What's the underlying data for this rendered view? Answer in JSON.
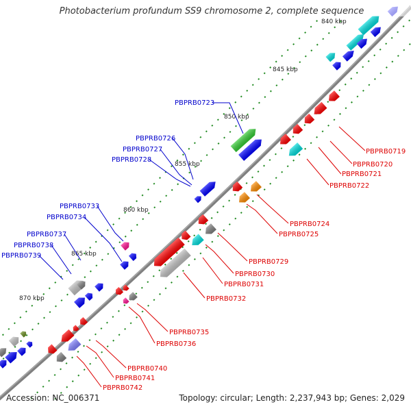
{
  "title": "Photobacterium profundum SS9 chromosome 2, complete sequence",
  "accession_label": "Accession: NC_006371",
  "summary_label": "Topology: circular; Length: 2,237,943 bp; Genes: 2,029",
  "colors": {
    "backbone": "#808080",
    "tick": "#228b22",
    "label_forward": "#0000cc",
    "label_reverse": "#dd0000",
    "feature_red": "#ff0000",
    "feature_blue": "#0000ff",
    "feature_cyan": "#00dddd",
    "feature_grey": "#808080",
    "feature_lightgrey": "#c0c0c0",
    "feature_green": "#33cc33",
    "feature_orange": "#ff8c00",
    "feature_pink": "#ff1493",
    "feature_violet": "#8080ff",
    "feature_olive": "#6b8e23"
  },
  "position_ticks": [
    "840 kbp",
    "845 kbp",
    "850 kbp",
    "855 kbp",
    "860 kbp",
    "865 kbp",
    "870 kbp"
  ],
  "genes_forward": [
    "PBPRB0723",
    "PBPRB0726",
    "PBPRB0727",
    "PBPRB0728",
    "PBPRB0733",
    "PBPRB0734",
    "PBPRB0737",
    "PBPRB0738",
    "PBPRB0739"
  ],
  "genes_reverse": [
    "PBPRB0719",
    "PBPRB0720",
    "PBPRB0721",
    "PBPRB0722",
    "PBPRB0724",
    "PBPRB0725",
    "PBPRB0729",
    "PBPRB0730",
    "PBPRB0731",
    "PBPRB0732",
    "PBPRB0735",
    "PBPRB0736",
    "PBPRB0740",
    "PBPRB0741",
    "PBPRB0742"
  ]
}
